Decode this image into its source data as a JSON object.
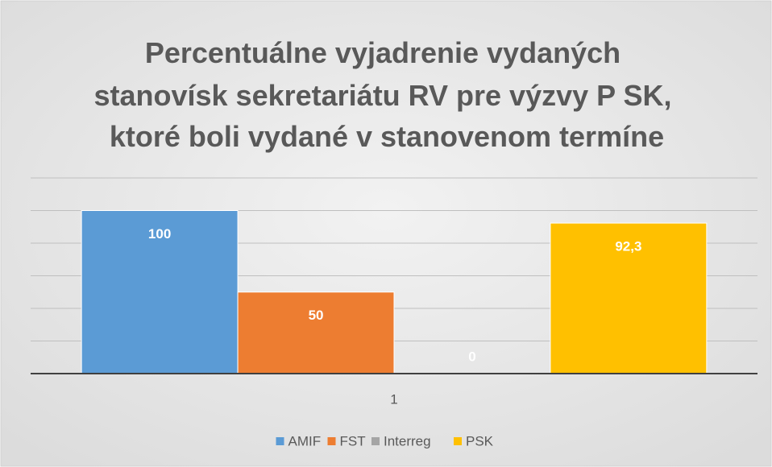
{
  "chart_data": {
    "type": "bar",
    "title": [
      "Percentuálne vyjadrenie vydaných",
      "stanovísk sekretariátu RV pre výzvy P SK,",
      "ktoré boli vydané v stanovenom termíne"
    ],
    "categories": [
      "1"
    ],
    "series": [
      {
        "name": "AMIF",
        "color": "#5b9bd5",
        "values": [
          100
        ]
      },
      {
        "name": "FST",
        "color": "#ed7d31",
        "values": [
          50
        ]
      },
      {
        "name": "Interreg",
        "color": "#a5a5a5",
        "values": [
          0
        ]
      },
      {
        "name": "PSK",
        "color": "#ffc000",
        "values": [
          92.3
        ],
        "value_labels": [
          "92,3"
        ]
      }
    ],
    "ylim": [
      0,
      120
    ],
    "yticks": [
      0,
      20,
      40,
      60,
      80,
      100,
      120
    ],
    "grid": true,
    "legend": "bottom"
  }
}
